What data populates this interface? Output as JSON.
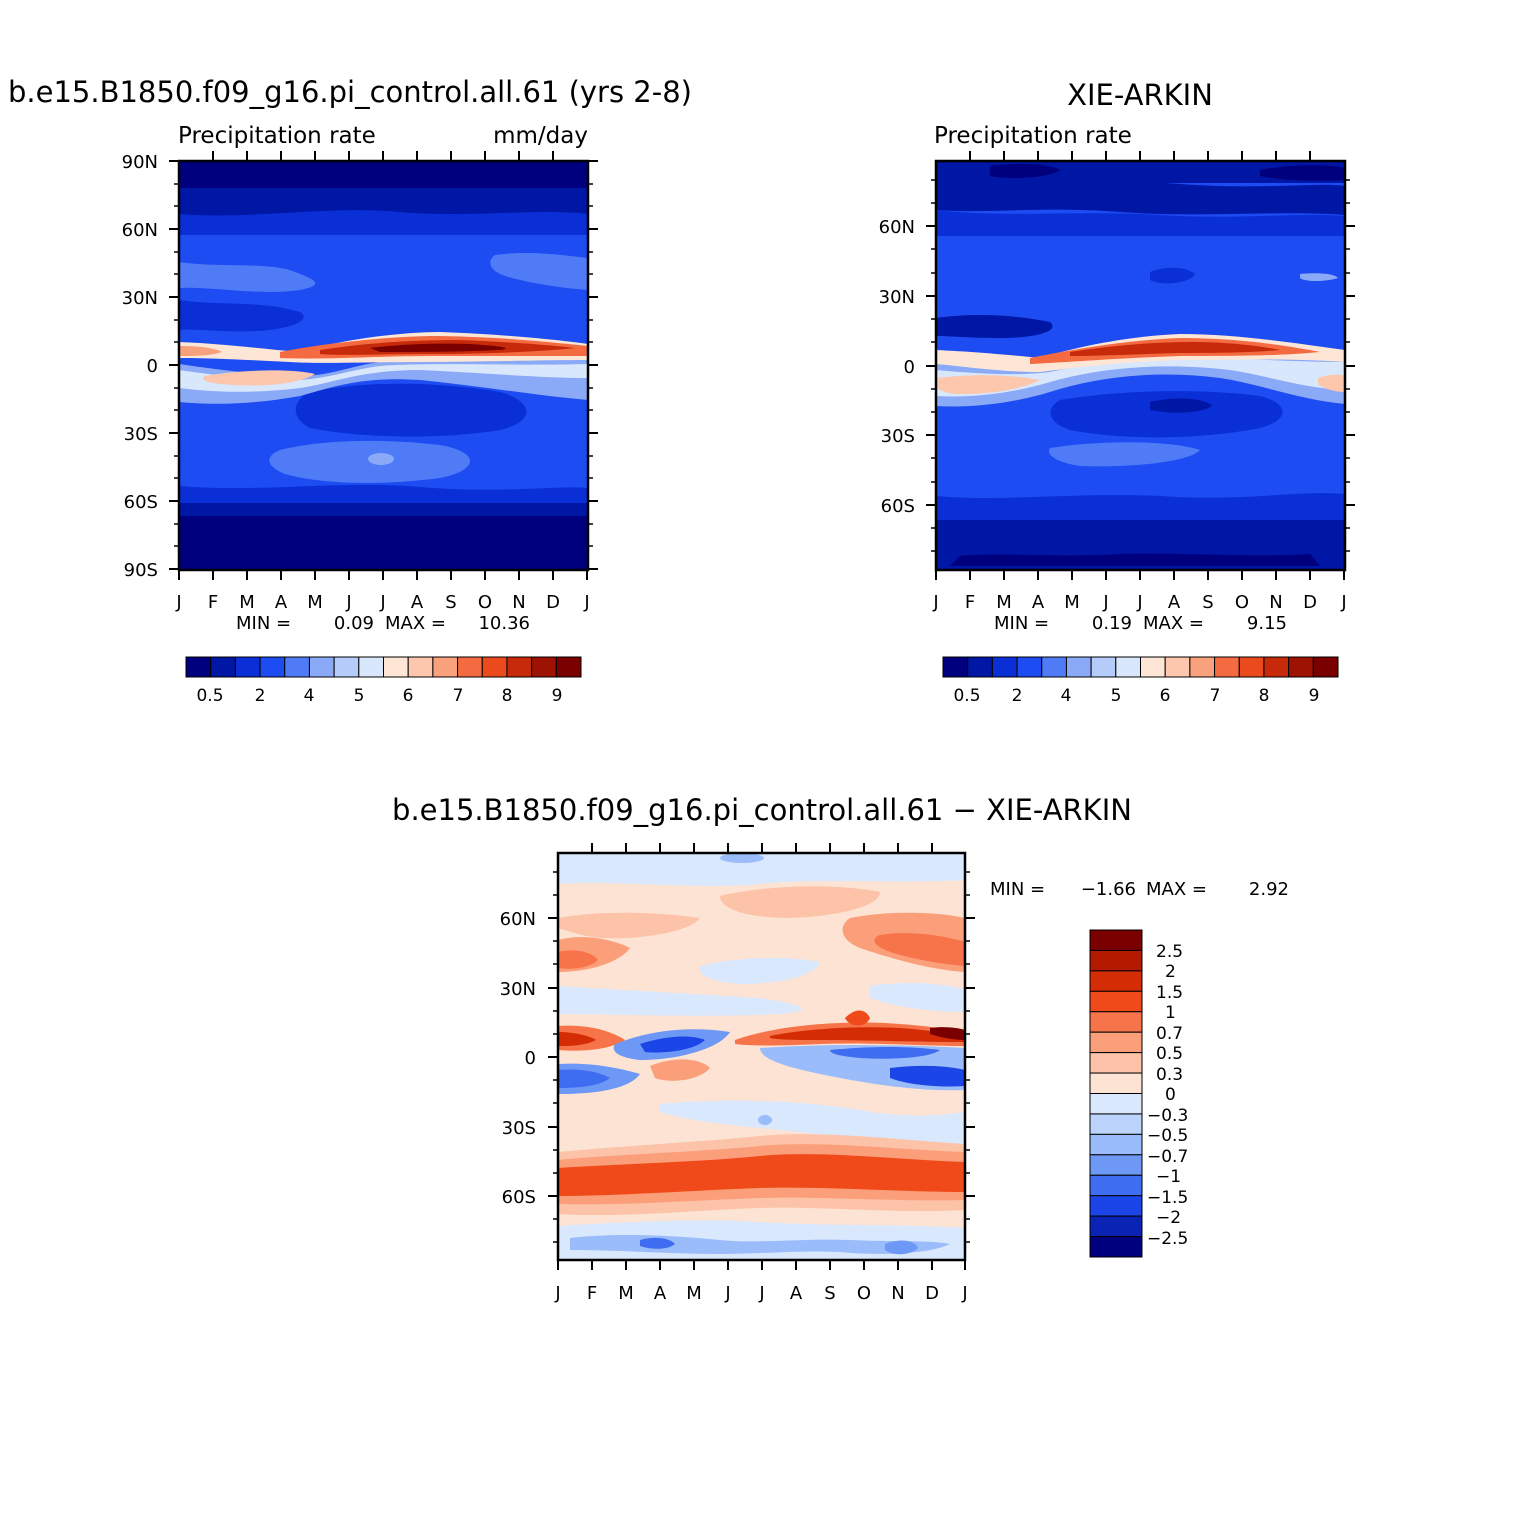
{
  "chart_data": [
    {
      "type": "heatmap",
      "title": "b.e15.B1850.f09_g16.pi_control.all.61 (yrs 2-8)",
      "subtitle_left": "Precipitation rate",
      "subtitle_right": "mm/day",
      "x_tick_labels": [
        "J",
        "F",
        "M",
        "A",
        "M",
        "J",
        "J",
        "A",
        "S",
        "O",
        "N",
        "D",
        "J"
      ],
      "y_tick_labels": [
        "90N",
        "60N",
        "30N",
        "0",
        "30S",
        "60S",
        "90S"
      ],
      "ylim": [
        -90,
        90
      ],
      "stats": {
        "min_label": "MIN =",
        "min": "0.09",
        "max_label": "MAX =",
        "max": "10.36"
      },
      "colorbar_labels": [
        "0.5",
        "2",
        "4",
        "5",
        "6",
        "7",
        "8",
        "9"
      ],
      "colorbar_colors": [
        "#00007f",
        "#0016a4",
        "#0a2fd6",
        "#1d4cf2",
        "#4f7cf6",
        "#8aaaf8",
        "#b5ccfa",
        "#d9e7fc",
        "#fde6d6",
        "#fcc7ad",
        "#f9a07c",
        "#f56b41",
        "#eb4a1c",
        "#c72a0a",
        "#9e1204",
        "#7a0000"
      ],
      "zonal_profiles": [
        {
          "lat": 90,
          "value": 0.3
        },
        {
          "lat": 75,
          "value": 0.8
        },
        {
          "lat": 65,
          "value": 1.4
        },
        {
          "lat": 50,
          "value": 2.8
        },
        {
          "lat": 40,
          "value": 2.5
        },
        {
          "lat": 30,
          "value": 1.6
        },
        {
          "lat": 20,
          "value": 1.5
        },
        {
          "lat": 10,
          "value": 5.0
        },
        {
          "lat": 7,
          "value": 9.0
        },
        {
          "lat": 0,
          "value": 3.5
        },
        {
          "lat": -8,
          "value": 3.0
        },
        {
          "lat": -20,
          "value": 1.2
        },
        {
          "lat": -30,
          "value": 1.8
        },
        {
          "lat": -45,
          "value": 3.0
        },
        {
          "lat": -55,
          "value": 2.4
        },
        {
          "lat": -70,
          "value": 0.7
        },
        {
          "lat": -90,
          "value": 0.1
        }
      ]
    },
    {
      "type": "heatmap",
      "title": "XIE-ARKIN",
      "subtitle_left": "Precipitation rate",
      "x_tick_labels": [
        "J",
        "F",
        "M",
        "A",
        "M",
        "J",
        "J",
        "A",
        "S",
        "O",
        "N",
        "D",
        "J"
      ],
      "y_tick_labels": [
        "60N",
        "30N",
        "0",
        "30S",
        "60S"
      ],
      "ylim": [
        -88,
        88
      ],
      "stats": {
        "min_label": "MIN =",
        "min": "0.19",
        "max_label": "MAX =",
        "max": "9.15"
      },
      "colorbar_labels": [
        "0.5",
        "2",
        "4",
        "5",
        "6",
        "7",
        "8",
        "9"
      ],
      "colorbar_colors": [
        "#00007f",
        "#0016a4",
        "#0a2fd6",
        "#1d4cf2",
        "#4f7cf6",
        "#8aaaf8",
        "#b5ccfa",
        "#d9e7fc",
        "#fde6d6",
        "#fcc7ad",
        "#f9a07c",
        "#f56b41",
        "#eb4a1c",
        "#c72a0a",
        "#9e1204",
        "#7a0000"
      ]
    },
    {
      "type": "heatmap",
      "title": "b.e15.B1850.f09_g16.pi_control.all.61 − XIE-ARKIN",
      "x_tick_labels": [
        "J",
        "F",
        "M",
        "A",
        "M",
        "J",
        "J",
        "A",
        "S",
        "O",
        "N",
        "D",
        "J"
      ],
      "y_tick_labels": [
        "60N",
        "30N",
        "0",
        "30S",
        "60S"
      ],
      "ylim": [
        -88,
        88
      ],
      "stats": {
        "min_label": "MIN =",
        "min": "−1.66",
        "max_label": "MAX =",
        "max": "2.92"
      },
      "colorbar_labels": [
        "2.5",
        "2",
        "1.5",
        "1",
        "0.7",
        "0.5",
        "0.3",
        "0",
        "−0.3",
        "−0.5",
        "−0.7",
        "−1",
        "−1.5",
        "−2",
        "−2.5"
      ],
      "colorbar_colors": [
        "#7a0000",
        "#b31a00",
        "#d42d06",
        "#f04a1a",
        "#f7744a",
        "#fa9f7a",
        "#fcc3a8",
        "#fde3d3",
        "#d9e8fc",
        "#bcd3fb",
        "#9bbcfa",
        "#6e98f6",
        "#3f6df2",
        "#1b45e6",
        "#0a23b5",
        "#00007f"
      ]
    }
  ]
}
